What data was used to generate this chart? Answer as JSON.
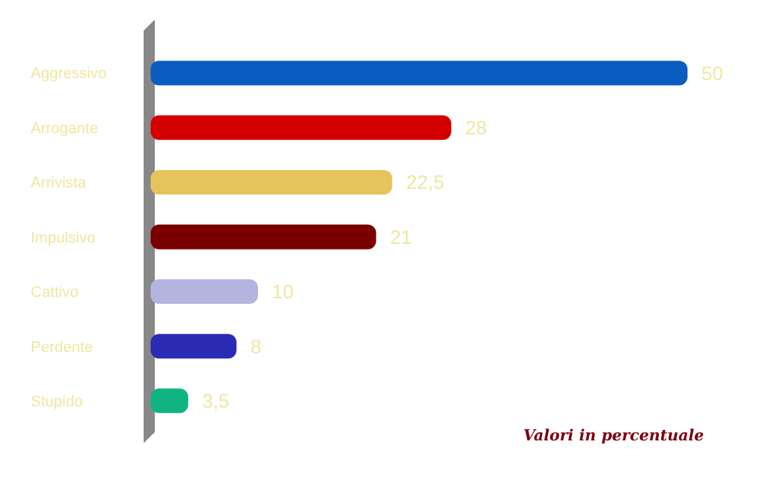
{
  "chart_data": {
    "type": "bar",
    "orientation": "horizontal",
    "categories": [
      "Aggressivo",
      "Arrogante",
      "Arrivista",
      "Impulsivo",
      "Cattivo",
      "Perdente",
      "Stupido"
    ],
    "values": [
      50,
      28,
      22.5,
      21,
      10,
      8,
      3.5
    ],
    "value_labels": [
      "50",
      "28",
      "22,5",
      "21",
      "10",
      "8",
      "3,5"
    ],
    "colors": [
      "#0a5cc0",
      "#d40000",
      "#e6c45c",
      "#7a0000",
      "#b4b4e0",
      "#2a2ab4",
      "#10b482"
    ],
    "annotations": [
      "Valori in percentuale"
    ]
  }
}
